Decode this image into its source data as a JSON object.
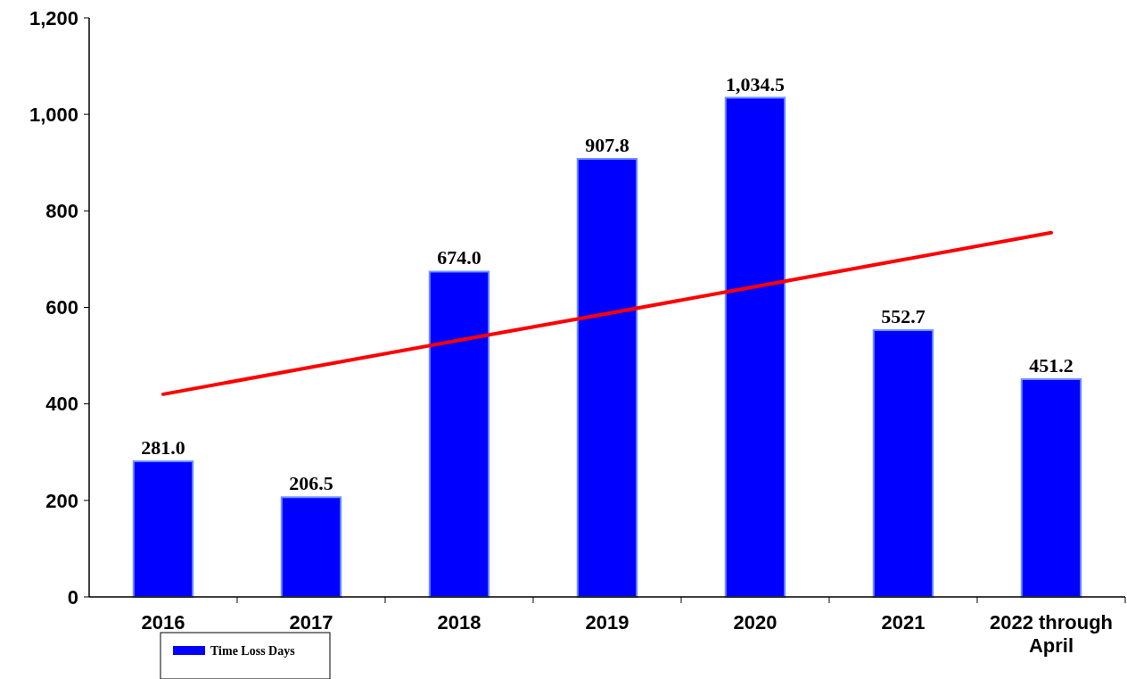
{
  "chart_data": {
    "type": "bar",
    "categories": [
      "2016",
      "2017",
      "2018",
      "2019",
      "2020",
      "2021",
      "2022 through April"
    ],
    "series": [
      {
        "name": "Time Loss Days",
        "color": "#0000ff",
        "values": [
          281.0,
          206.5,
          674.0,
          907.8,
          1034.5,
          552.7,
          451.2
        ],
        "value_labels": [
          "281.0",
          "206.5",
          "674.0",
          "907.8",
          "1,034.5",
          "552.7",
          "451.2"
        ]
      },
      {
        "type": "line",
        "color": "#ff0000",
        "values": [
          420,
          476,
          532,
          587,
          643,
          699,
          755
        ]
      }
    ],
    "ylim": [
      0,
      1200
    ],
    "yticks": [
      0,
      200,
      400,
      600,
      800,
      {
        "value": 1000,
        "label": "1,000"
      },
      {
        "value": 1200,
        "label": "1,200"
      }
    ],
    "grid": false,
    "legend": "bottom left",
    "marker": "none",
    "line_style": "solid"
  }
}
